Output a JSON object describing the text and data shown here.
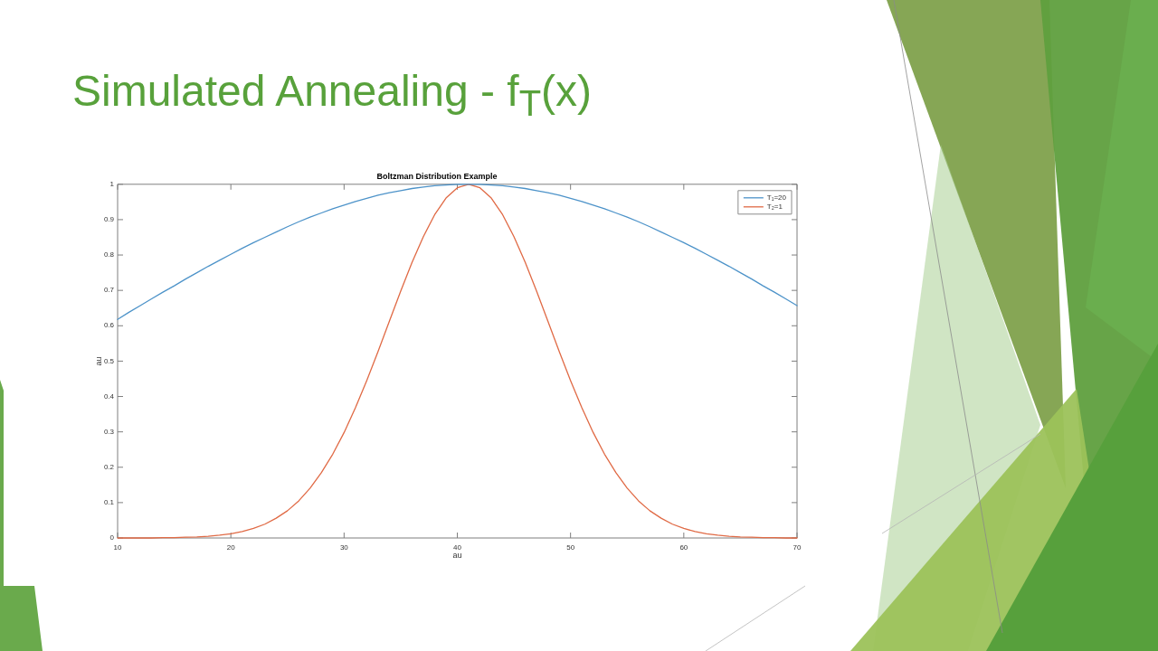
{
  "chart_data": {
    "type": "line",
    "title": "Simulated Annealing - f$_{T}$(x)",
    "subtitle": "Boltzman Distribution Example",
    "xlabel": "au",
    "ylabel": "au",
    "x": [
      10,
      11,
      12,
      13,
      14,
      15,
      16,
      17,
      18,
      19,
      20,
      21,
      22,
      23,
      24,
      25,
      26,
      27,
      28,
      29,
      30,
      31,
      32,
      33,
      34,
      35,
      36,
      37,
      38,
      39,
      40,
      41,
      42,
      43,
      44,
      45,
      46,
      47,
      48,
      49,
      50,
      51,
      52,
      53,
      54,
      55,
      56,
      57,
      58,
      59,
      60,
      61,
      62,
      63,
      64,
      65,
      66,
      67,
      68,
      69,
      70
    ],
    "series": [
      {
        "name": "T₁=20",
        "color": "#4d93c9",
        "values": [
          0.618,
          0.638,
          0.657,
          0.676,
          0.695,
          0.713,
          0.732,
          0.75,
          0.768,
          0.785,
          0.802,
          0.819,
          0.835,
          0.85,
          0.865,
          0.88,
          0.894,
          0.907,
          0.919,
          0.931,
          0.941,
          0.951,
          0.96,
          0.969,
          0.976,
          0.982,
          0.988,
          0.992,
          0.996,
          0.998,
          1.0,
          1,
          1.0,
          0.998,
          0.996,
          0.992,
          0.988,
          0.982,
          0.976,
          0.969,
          0.96,
          0.951,
          0.941,
          0.931,
          0.919,
          0.907,
          0.894,
          0.88,
          0.865,
          0.85,
          0.835,
          0.819,
          0.802,
          0.785,
          0.768,
          0.75,
          0.732,
          0.713,
          0.695,
          0.676,
          0.657
        ]
      },
      {
        "name": "T₂=1",
        "color": "#e06a45",
        "values": [
          0,
          0,
          0,
          0,
          0.001,
          0.001,
          0.002,
          0.003,
          0.005,
          0.008,
          0.012,
          0.018,
          0.027,
          0.039,
          0.056,
          0.077,
          0.105,
          0.141,
          0.185,
          0.237,
          0.298,
          0.368,
          0.445,
          0.527,
          0.613,
          0.698,
          0.779,
          0.852,
          0.914,
          0.961,
          0.99,
          1,
          0.99,
          0.961,
          0.914,
          0.852,
          0.779,
          0.698,
          0.613,
          0.527,
          0.445,
          0.368,
          0.298,
          0.237,
          0.185,
          0.141,
          0.105,
          0.077,
          0.056,
          0.039,
          0.027,
          0.018,
          0.012,
          0.008,
          0.005,
          0.003,
          0.002,
          0.001,
          0.001,
          0,
          0
        ]
      }
    ],
    "xlim": [
      10,
      70
    ],
    "xticks": [
      10,
      20,
      30,
      40,
      50,
      60,
      70
    ],
    "ylim": [
      0,
      1
    ],
    "yticks": [
      0,
      0.1,
      0.2,
      0.3,
      0.4,
      0.5,
      0.6,
      0.7,
      0.8,
      0.9,
      1
    ],
    "legend": "top right",
    "marker": "none",
    "line_style": "solid"
  }
}
